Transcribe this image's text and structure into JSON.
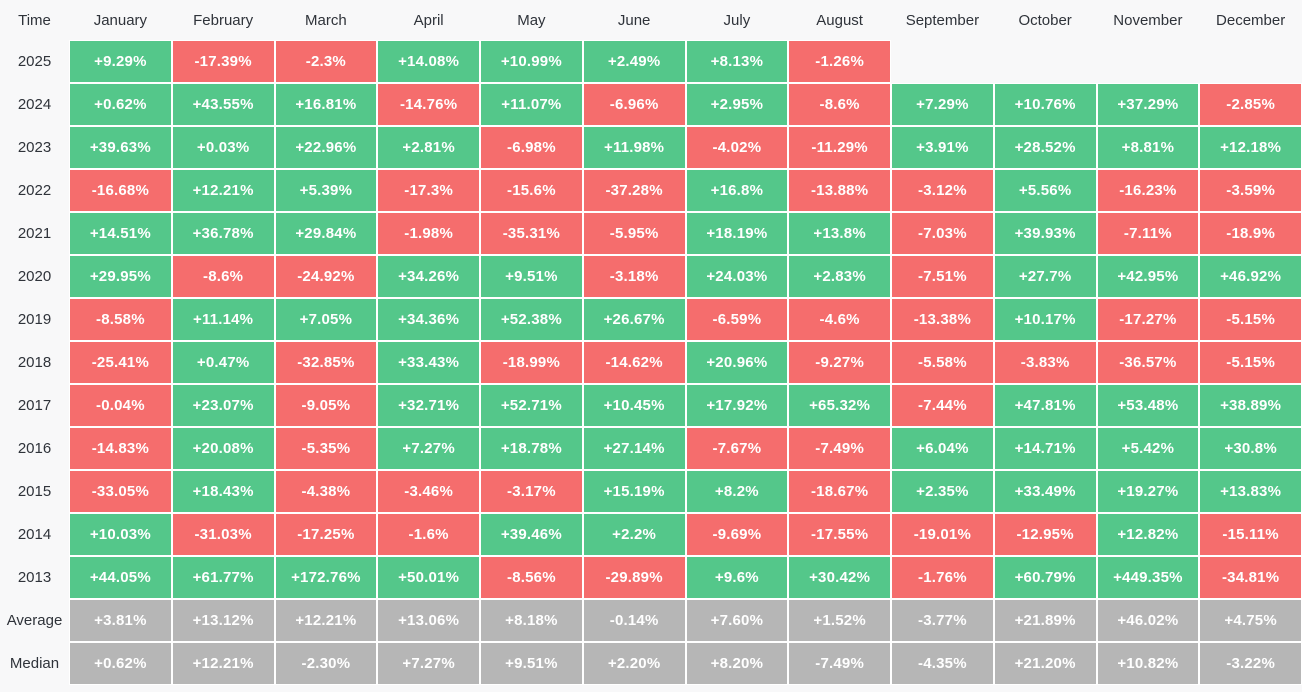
{
  "chart_data": {
    "type": "heatmap",
    "corner_label": "Time",
    "months": [
      "January",
      "February",
      "March",
      "April",
      "May",
      "June",
      "July",
      "August",
      "September",
      "October",
      "November",
      "December"
    ],
    "rows": [
      {
        "label": "2025",
        "kind": "year",
        "values": [
          "+9.29%",
          "-17.39%",
          "-2.3%",
          "+14.08%",
          "+10.99%",
          "+2.49%",
          "+8.13%",
          "-1.26%",
          "",
          "",
          "",
          ""
        ]
      },
      {
        "label": "2024",
        "kind": "year",
        "values": [
          "+0.62%",
          "+43.55%",
          "+16.81%",
          "-14.76%",
          "+11.07%",
          "-6.96%",
          "+2.95%",
          "-8.6%",
          "+7.29%",
          "+10.76%",
          "+37.29%",
          "-2.85%"
        ]
      },
      {
        "label": "2023",
        "kind": "year",
        "values": [
          "+39.63%",
          "+0.03%",
          "+22.96%",
          "+2.81%",
          "-6.98%",
          "+11.98%",
          "-4.02%",
          "-11.29%",
          "+3.91%",
          "+28.52%",
          "+8.81%",
          "+12.18%"
        ]
      },
      {
        "label": "2022",
        "kind": "year",
        "values": [
          "-16.68%",
          "+12.21%",
          "+5.39%",
          "-17.3%",
          "-15.6%",
          "-37.28%",
          "+16.8%",
          "-13.88%",
          "-3.12%",
          "+5.56%",
          "-16.23%",
          "-3.59%"
        ]
      },
      {
        "label": "2021",
        "kind": "year",
        "values": [
          "+14.51%",
          "+36.78%",
          "+29.84%",
          "-1.98%",
          "-35.31%",
          "-5.95%",
          "+18.19%",
          "+13.8%",
          "-7.03%",
          "+39.93%",
          "-7.11%",
          "-18.9%"
        ]
      },
      {
        "label": "2020",
        "kind": "year",
        "values": [
          "+29.95%",
          "-8.6%",
          "-24.92%",
          "+34.26%",
          "+9.51%",
          "-3.18%",
          "+24.03%",
          "+2.83%",
          "-7.51%",
          "+27.7%",
          "+42.95%",
          "+46.92%"
        ]
      },
      {
        "label": "2019",
        "kind": "year",
        "values": [
          "-8.58%",
          "+11.14%",
          "+7.05%",
          "+34.36%",
          "+52.38%",
          "+26.67%",
          "-6.59%",
          "-4.6%",
          "-13.38%",
          "+10.17%",
          "-17.27%",
          "-5.15%"
        ]
      },
      {
        "label": "2018",
        "kind": "year",
        "values": [
          "-25.41%",
          "+0.47%",
          "-32.85%",
          "+33.43%",
          "-18.99%",
          "-14.62%",
          "+20.96%",
          "-9.27%",
          "-5.58%",
          "-3.83%",
          "-36.57%",
          "-5.15%"
        ]
      },
      {
        "label": "2017",
        "kind": "year",
        "values": [
          "-0.04%",
          "+23.07%",
          "-9.05%",
          "+32.71%",
          "+52.71%",
          "+10.45%",
          "+17.92%",
          "+65.32%",
          "-7.44%",
          "+47.81%",
          "+53.48%",
          "+38.89%"
        ]
      },
      {
        "label": "2016",
        "kind": "year",
        "values": [
          "-14.83%",
          "+20.08%",
          "-5.35%",
          "+7.27%",
          "+18.78%",
          "+27.14%",
          "-7.67%",
          "-7.49%",
          "+6.04%",
          "+14.71%",
          "+5.42%",
          "+30.8%"
        ]
      },
      {
        "label": "2015",
        "kind": "year",
        "values": [
          "-33.05%",
          "+18.43%",
          "-4.38%",
          "-3.46%",
          "-3.17%",
          "+15.19%",
          "+8.2%",
          "-18.67%",
          "+2.35%",
          "+33.49%",
          "+19.27%",
          "+13.83%"
        ]
      },
      {
        "label": "2014",
        "kind": "year",
        "values": [
          "+10.03%",
          "-31.03%",
          "-17.25%",
          "-1.6%",
          "+39.46%",
          "+2.2%",
          "-9.69%",
          "-17.55%",
          "-19.01%",
          "-12.95%",
          "+12.82%",
          "-15.11%"
        ]
      },
      {
        "label": "2013",
        "kind": "year",
        "values": [
          "+44.05%",
          "+61.77%",
          "+172.76%",
          "+50.01%",
          "-8.56%",
          "-29.89%",
          "+9.6%",
          "+30.42%",
          "-1.76%",
          "+60.79%",
          "+449.35%",
          "-34.81%"
        ]
      },
      {
        "label": "Average",
        "kind": "summary",
        "values": [
          "+3.81%",
          "+13.12%",
          "+12.21%",
          "+13.06%",
          "+8.18%",
          "-0.14%",
          "+7.60%",
          "+1.52%",
          "-3.77%",
          "+21.89%",
          "+46.02%",
          "+4.75%"
        ]
      },
      {
        "label": "Median",
        "kind": "summary",
        "values": [
          "+0.62%",
          "+12.21%",
          "-2.30%",
          "+7.27%",
          "+9.51%",
          "+2.20%",
          "+8.20%",
          "-7.49%",
          "-4.35%",
          "+21.20%",
          "+10.82%",
          "-3.22%"
        ]
      }
    ]
  },
  "colors": {
    "positive": "#54c78a",
    "negative": "#f56d6d",
    "summary": "#b6b6b6",
    "page_background": "#f8f8f9",
    "cell_text": "#ffffff",
    "label_text": "#2f333a"
  }
}
